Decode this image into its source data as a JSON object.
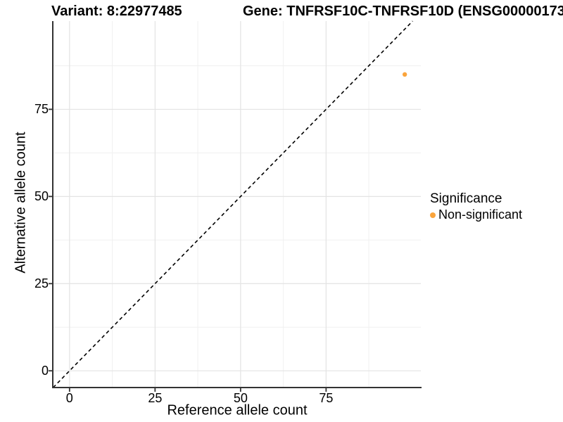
{
  "header": {
    "variant_title": "Variant: 8:22977485",
    "gene_title": "Gene: TNFRSF10C-TNFRSF10D (ENSG00000173"
  },
  "chart_data": {
    "type": "scatter",
    "title_left": "Variant: 8:22977485",
    "title_right": "Gene: TNFRSF10C-TNFRSF10D (ENSG00000173",
    "xlabel": "Reference allele count",
    "ylabel": "Alternative allele count",
    "x_ticks": [
      0,
      25,
      50,
      75
    ],
    "y_ticks": [
      0,
      25,
      50,
      75
    ],
    "x_minor_ticks": [
      12.5,
      37.5,
      62.5,
      87.5
    ],
    "y_minor_ticks": [
      12.5,
      37.5,
      62.5,
      87.5
    ],
    "xlim": [
      -4.9,
      102.7
    ],
    "ylim": [
      -4.8,
      100.3
    ],
    "grid": "major and minor gridlines, white background",
    "points": [
      {
        "x": 98,
        "y": 85,
        "series": "Non-significant"
      }
    ],
    "reference_line": {
      "type": "identity",
      "slope": 1,
      "intercept": 0,
      "style": "dashed",
      "color": "#000000"
    },
    "legend": {
      "title": "Significance",
      "position": "right",
      "items": [
        {
          "label": "Non-significant",
          "color": "#FAA43C",
          "marker": "circle"
        }
      ]
    }
  },
  "colors": {
    "background": "#FFFFFF",
    "axis_line": "#333333",
    "tick_mark": "#333333",
    "major_grid": "#E3E3E3",
    "minor_grid": "#F0F0F0",
    "point": "#FAA43C",
    "text": "#000000"
  }
}
